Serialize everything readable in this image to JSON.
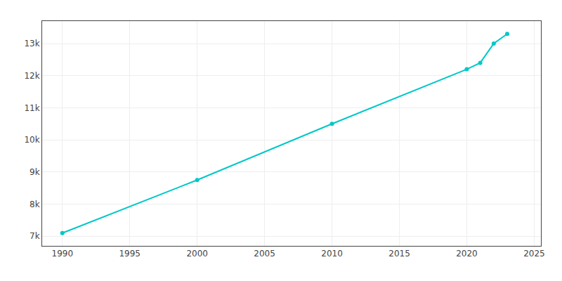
{
  "chart_data": {
    "type": "line",
    "x": [
      1990,
      2000,
      2010,
      2020,
      2021,
      2022,
      2023
    ],
    "values": [
      7100,
      8750,
      10500,
      12200,
      12400,
      13000,
      13300
    ],
    "color": "#00C8C8",
    "marker": "circle",
    "xlim": [
      1988.5,
      2025.5
    ],
    "xticks": [
      1990,
      1995,
      2000,
      2005,
      2010,
      2015,
      2020,
      2025
    ],
    "ylim": [
      6700,
      13700
    ],
    "yticks": [
      {
        "value": 7000,
        "label": "7k"
      },
      {
        "value": 8000,
        "label": "8k"
      },
      {
        "value": 9000,
        "label": "9k"
      },
      {
        "value": 10000,
        "label": "10k"
      },
      {
        "value": 11000,
        "label": "11k"
      },
      {
        "value": 12000,
        "label": "12k"
      },
      {
        "value": 13000,
        "label": "13k"
      }
    ],
    "grid": true
  }
}
